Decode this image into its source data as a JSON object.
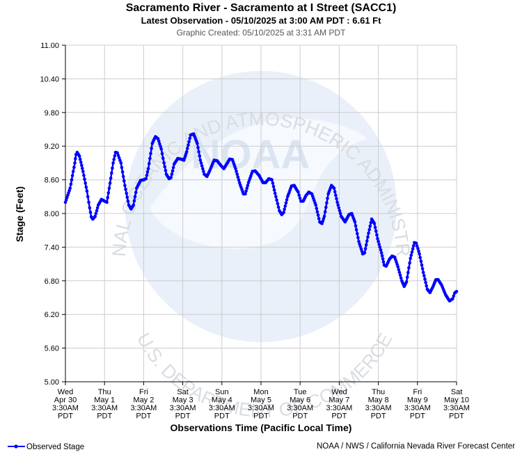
{
  "title": "Sacramento River - Sacramento at I Street (SACC1)",
  "subtitle": "Latest Observation - 05/10/2025 at 3:00 AM PDT : 6.61 Ft",
  "created": "Graphic Created: 05/10/2025 at 3:31 AM PDT",
  "watermark": {
    "arc_text_top": "NATIONAL OCEANIC AND ATMOSPHERIC ADMINISTRATION",
    "arc_text_bottom": "U.S. DEPARTMENT OF COMMERCE",
    "logo_text": "NOAA"
  },
  "legend": {
    "label": "Observed Stage"
  },
  "credit": "NOAA / NWS / California Nevada River Forecast Center",
  "colors": {
    "series": "#0000ff",
    "grid": "#cccccc",
    "watermark": "#dde8f5"
  },
  "chart_data": {
    "type": "line",
    "title": "Sacramento River - Sacramento at I Street (SACC1)",
    "xlabel": "Observations Time (Pacific Local Time)",
    "ylabel": "Stage (Feet)",
    "ylim": [
      5.0,
      11.0
    ],
    "yticks": [
      "11.00",
      "10.40",
      "9.80",
      "9.20",
      "8.60",
      "8.00",
      "7.40",
      "6.80",
      "6.20",
      "5.60",
      "5.00"
    ],
    "xlim_days": [
      0,
      10
    ],
    "xticks": [
      [
        "Wed",
        "Apr 30",
        "3:30AM",
        "PDT"
      ],
      [
        "Thu",
        "May 1",
        "3:30AM",
        "PDT"
      ],
      [
        "Fri",
        "May 2",
        "3:30AM",
        "PDT"
      ],
      [
        "Sat",
        "May 3",
        "3:30AM",
        "PDT"
      ],
      [
        "Sun",
        "May 4",
        "3:30AM",
        "PDT"
      ],
      [
        "Mon",
        "May 5",
        "3:30AM",
        "PDT"
      ],
      [
        "Tue",
        "May 6",
        "3:30AM",
        "PDT"
      ],
      [
        "Wed",
        "May 7",
        "3:30AM",
        "PDT"
      ],
      [
        "Thu",
        "May 8",
        "3:30AM",
        "PDT"
      ],
      [
        "Fri",
        "May 9",
        "3:30AM",
        "PDT"
      ],
      [
        "Sat",
        "May 10",
        "3:30AM",
        "PDT"
      ]
    ],
    "grid": true,
    "series": [
      {
        "name": "Observed Stage",
        "points": [
          [
            0.0,
            8.2
          ],
          [
            0.12,
            8.45
          ],
          [
            0.24,
            8.9
          ],
          [
            0.27,
            9.05
          ],
          [
            0.3,
            9.09
          ],
          [
            0.36,
            9.02
          ],
          [
            0.45,
            8.75
          ],
          [
            0.55,
            8.4
          ],
          [
            0.62,
            8.1
          ],
          [
            0.66,
            7.94
          ],
          [
            0.7,
            7.9
          ],
          [
            0.76,
            7.95
          ],
          [
            0.84,
            8.15
          ],
          [
            0.92,
            8.25
          ],
          [
            1.0,
            8.22
          ],
          [
            1.06,
            8.2
          ],
          [
            1.12,
            8.45
          ],
          [
            1.22,
            8.9
          ],
          [
            1.28,
            9.09
          ],
          [
            1.33,
            9.08
          ],
          [
            1.42,
            8.9
          ],
          [
            1.52,
            8.5
          ],
          [
            1.62,
            8.15
          ],
          [
            1.68,
            8.08
          ],
          [
            1.74,
            8.15
          ],
          [
            1.82,
            8.45
          ],
          [
            1.92,
            8.59
          ],
          [
            2.0,
            8.6
          ],
          [
            2.06,
            8.62
          ],
          [
            2.12,
            8.8
          ],
          [
            2.22,
            9.25
          ],
          [
            2.3,
            9.37
          ],
          [
            2.37,
            9.33
          ],
          [
            2.45,
            9.15
          ],
          [
            2.52,
            8.9
          ],
          [
            2.58,
            8.7
          ],
          [
            2.65,
            8.62
          ],
          [
            2.7,
            8.64
          ],
          [
            2.78,
            8.88
          ],
          [
            2.87,
            8.98
          ],
          [
            2.95,
            8.97
          ],
          [
            3.03,
            8.95
          ],
          [
            3.1,
            9.1
          ],
          [
            3.2,
            9.4
          ],
          [
            3.28,
            9.42
          ],
          [
            3.37,
            9.25
          ],
          [
            3.45,
            8.95
          ],
          [
            3.55,
            8.7
          ],
          [
            3.62,
            8.66
          ],
          [
            3.7,
            8.78
          ],
          [
            3.8,
            8.95
          ],
          [
            3.88,
            8.94
          ],
          [
            3.98,
            8.85
          ],
          [
            4.05,
            8.8
          ],
          [
            4.12,
            8.88
          ],
          [
            4.2,
            8.97
          ],
          [
            4.27,
            8.96
          ],
          [
            4.35,
            8.8
          ],
          [
            4.45,
            8.55
          ],
          [
            4.55,
            8.35
          ],
          [
            4.6,
            8.35
          ],
          [
            4.68,
            8.55
          ],
          [
            4.78,
            8.75
          ],
          [
            4.85,
            8.76
          ],
          [
            4.95,
            8.68
          ],
          [
            5.05,
            8.55
          ],
          [
            5.12,
            8.55
          ],
          [
            5.2,
            8.62
          ],
          [
            5.28,
            8.6
          ],
          [
            5.38,
            8.3
          ],
          [
            5.47,
            8.05
          ],
          [
            5.53,
            7.98
          ],
          [
            5.58,
            8.02
          ],
          [
            5.68,
            8.3
          ],
          [
            5.78,
            8.49
          ],
          [
            5.85,
            8.5
          ],
          [
            5.95,
            8.38
          ],
          [
            6.02,
            8.22
          ],
          [
            6.08,
            8.22
          ],
          [
            6.15,
            8.32
          ],
          [
            6.22,
            8.38
          ],
          [
            6.3,
            8.35
          ],
          [
            6.4,
            8.15
          ],
          [
            6.5,
            7.85
          ],
          [
            6.56,
            7.82
          ],
          [
            6.62,
            7.95
          ],
          [
            6.72,
            8.35
          ],
          [
            6.8,
            8.5
          ],
          [
            6.87,
            8.45
          ],
          [
            6.95,
            8.2
          ],
          [
            7.05,
            7.95
          ],
          [
            7.15,
            7.85
          ],
          [
            7.25,
            7.98
          ],
          [
            7.32,
            8.0
          ],
          [
            7.4,
            7.85
          ],
          [
            7.5,
            7.5
          ],
          [
            7.6,
            7.28
          ],
          [
            7.65,
            7.3
          ],
          [
            7.75,
            7.65
          ],
          [
            7.83,
            7.9
          ],
          [
            7.9,
            7.82
          ],
          [
            7.98,
            7.55
          ],
          [
            8.08,
            7.3
          ],
          [
            8.15,
            7.08
          ],
          [
            8.2,
            7.06
          ],
          [
            8.28,
            7.18
          ],
          [
            8.35,
            7.24
          ],
          [
            8.42,
            7.22
          ],
          [
            8.5,
            7.05
          ],
          [
            8.6,
            6.8
          ],
          [
            8.66,
            6.7
          ],
          [
            8.72,
            6.78
          ],
          [
            8.82,
            7.2
          ],
          [
            8.92,
            7.48
          ],
          [
            8.97,
            7.47
          ],
          [
            9.05,
            7.28
          ],
          [
            9.15,
            6.95
          ],
          [
            9.25,
            6.65
          ],
          [
            9.32,
            6.59
          ],
          [
            9.4,
            6.7
          ],
          [
            9.47,
            6.82
          ],
          [
            9.53,
            6.82
          ],
          [
            9.62,
            6.72
          ],
          [
            9.72,
            6.55
          ],
          [
            9.82,
            6.44
          ],
          [
            9.9,
            6.48
          ],
          [
            9.95,
            6.58
          ],
          [
            10.0,
            6.61
          ]
        ]
      }
    ]
  }
}
